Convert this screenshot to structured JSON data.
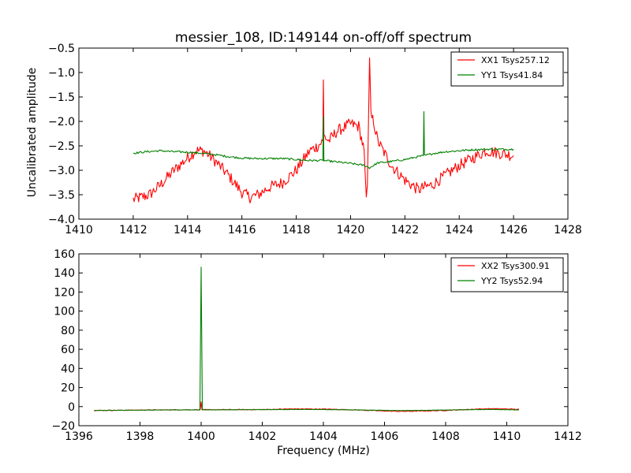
{
  "chart_data": [
    {
      "type": "line",
      "title": "messier_108, ID:149144 on-off/off spectrum",
      "xlabel": "",
      "ylabel": "Uncalibrated amplitude",
      "xlim": [
        1410,
        1428
      ],
      "ylim": [
        -4.0,
        -0.5
      ],
      "xticks": [
        "1410",
        "1412",
        "1414",
        "1416",
        "1418",
        "1420",
        "1422",
        "1424",
        "1426",
        "1428"
      ],
      "yticks": [
        "−4.0",
        "−3.5",
        "−3.0",
        "−2.5",
        "−2.0",
        "−1.5",
        "−1.0",
        "−0.5"
      ],
      "grid": false,
      "legend_position": "top-right",
      "series": [
        {
          "name": "XX1 Tsys257.12",
          "color": "#ff0000",
          "noise": 0.12,
          "x": [
            1412.0,
            1412.3,
            1412.6,
            1413.0,
            1413.5,
            1414.0,
            1414.3,
            1414.6,
            1415.0,
            1415.5,
            1416.0,
            1416.3,
            1416.6,
            1417.0,
            1417.5,
            1418.0,
            1418.5,
            1418.8,
            1418.98,
            1419.0,
            1419.02,
            1419.2,
            1419.5,
            1420.0,
            1420.3,
            1420.5,
            1420.58,
            1420.62,
            1420.7,
            1420.75,
            1420.85,
            1421.0,
            1421.2,
            1421.5,
            1422.0,
            1422.5,
            1422.7,
            1423.0,
            1423.5,
            1424.0,
            1424.5,
            1425.0,
            1425.5,
            1426.0
          ],
          "y": [
            -3.6,
            -3.55,
            -3.5,
            -3.3,
            -3.0,
            -2.75,
            -2.6,
            -2.6,
            -2.8,
            -3.1,
            -3.45,
            -3.55,
            -3.5,
            -3.35,
            -3.25,
            -3.0,
            -2.6,
            -2.5,
            -2.4,
            -1.15,
            -2.3,
            -2.4,
            -2.2,
            -2.05,
            -2.1,
            -2.6,
            -3.6,
            -3.3,
            -0.7,
            -1.9,
            -2.0,
            -2.4,
            -2.6,
            -2.9,
            -3.2,
            -3.4,
            -3.35,
            -3.3,
            -3.1,
            -2.9,
            -2.75,
            -2.6,
            -2.65,
            -2.7
          ]
        },
        {
          "name": "YY1 Tsys41.84",
          "color": "#008000",
          "noise": 0.02,
          "x": [
            1412.0,
            1412.5,
            1413.0,
            1413.5,
            1414.0,
            1414.5,
            1415.0,
            1415.5,
            1416.0,
            1416.5,
            1417.0,
            1417.5,
            1418.0,
            1418.5,
            1418.98,
            1419.0,
            1419.02,
            1419.5,
            1420.0,
            1420.5,
            1420.7,
            1421.0,
            1421.5,
            1422.0,
            1422.5,
            1422.68,
            1422.7,
            1422.72,
            1423.0,
            1423.5,
            1424.0,
            1424.5,
            1425.0,
            1425.5,
            1426.0
          ],
          "y": [
            -2.65,
            -2.62,
            -2.6,
            -2.62,
            -2.63,
            -2.65,
            -2.68,
            -2.72,
            -2.75,
            -2.76,
            -2.76,
            -2.76,
            -2.78,
            -2.8,
            -2.8,
            -1.9,
            -2.8,
            -2.83,
            -2.86,
            -2.9,
            -2.95,
            -2.85,
            -2.82,
            -2.78,
            -2.72,
            -2.7,
            -1.8,
            -2.7,
            -2.66,
            -2.62,
            -2.6,
            -2.58,
            -2.57,
            -2.57,
            -2.57
          ]
        }
      ]
    },
    {
      "type": "line",
      "title": "",
      "xlabel": "Frequency (MHz)",
      "ylabel": "",
      "xlim": [
        1396,
        1412
      ],
      "ylim": [
        -20,
        160
      ],
      "xticks": [
        "1396",
        "1398",
        "1400",
        "1402",
        "1404",
        "1406",
        "1408",
        "1410",
        "1412"
      ],
      "yticks": [
        "−20",
        "0",
        "20",
        "40",
        "60",
        "80",
        "100",
        "120",
        "140",
        "160"
      ],
      "grid": false,
      "legend_position": "top-right",
      "series": [
        {
          "name": "XX2 Tsys300.91",
          "color": "#ff0000",
          "noise": 0.4,
          "x": [
            1396.5,
            1397.5,
            1398.5,
            1399.5,
            1399.97,
            1400.0,
            1400.03,
            1401.0,
            1402.0,
            1403.0,
            1404.0,
            1405.0,
            1406.0,
            1406.5,
            1407.0,
            1408.0,
            1409.0,
            1409.5,
            1410.0,
            1410.4
          ],
          "y": [
            -4,
            -3.8,
            -3.5,
            -3.3,
            -3.3,
            5,
            -3.3,
            -3.2,
            -3.1,
            -2.4,
            -2.6,
            -3.4,
            -4.6,
            -5.0,
            -4.8,
            -4.0,
            -2.6,
            -2.2,
            -2.5,
            -2.9
          ]
        },
        {
          "name": "YY2 Tsys52.94",
          "color": "#008000",
          "noise": 0.15,
          "x": [
            1396.5,
            1397.5,
            1398.5,
            1399.5,
            1399.96,
            1400.0,
            1400.04,
            1401.0,
            1402.0,
            1403.0,
            1404.0,
            1405.0,
            1406.0,
            1406.5,
            1407.0,
            1408.0,
            1409.0,
            1409.5,
            1410.0,
            1410.4
          ],
          "y": [
            -4,
            -3.8,
            -3.6,
            -3.4,
            -3.4,
            146,
            -3.4,
            -3.3,
            -3.2,
            -3.0,
            -3.1,
            -3.4,
            -3.9,
            -4.1,
            -4.0,
            -3.6,
            -3.1,
            -3.0,
            -3.2,
            -3.5
          ]
        }
      ]
    }
  ]
}
